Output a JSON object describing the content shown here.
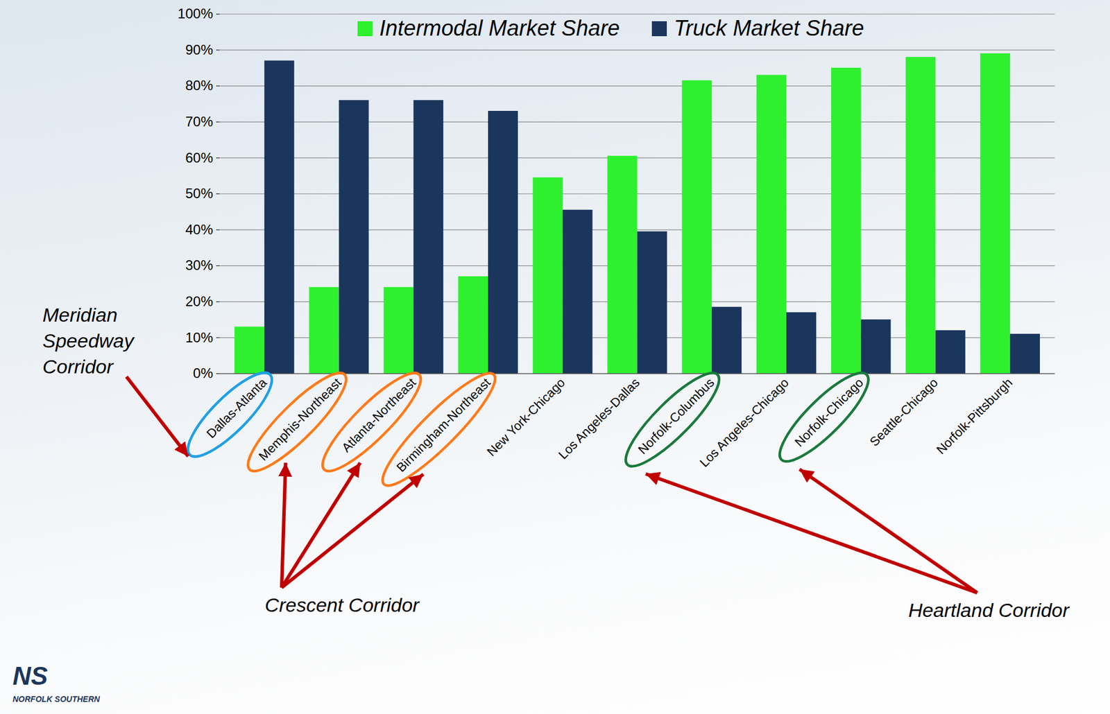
{
  "chart_data": {
    "type": "bar",
    "categories": [
      "Dallas-Atlanta",
      "Memphis-Northeast",
      "Atlanta-Northeast",
      "Birmingham-Northeast",
      "New York-Chicago",
      "Los Angeles-Dallas",
      "Norfolk-Columbus",
      "Los Angeles-Chicago",
      "Norfolk-Chicago",
      "Seattle-Chicago",
      "Norfolk-Pittsburgh"
    ],
    "series": [
      {
        "name": "Intermodal Market Share",
        "color": "#2ef02e",
        "values": [
          13,
          24,
          24,
          27,
          54.5,
          60.5,
          81.5,
          83,
          85,
          88,
          89
        ]
      },
      {
        "name": "Truck Market Share",
        "color": "#1b365d",
        "values": [
          87,
          76,
          76,
          73,
          45.5,
          39.5,
          18.5,
          17,
          15,
          12,
          11
        ]
      }
    ],
    "ylim": [
      0,
      100
    ],
    "yticks": [
      {
        "value": 0,
        "label": "0%"
      },
      {
        "value": 10,
        "label": "10%"
      },
      {
        "value": 20,
        "label": "20%"
      },
      {
        "value": 30,
        "label": "30%"
      },
      {
        "value": 40,
        "label": "40%"
      },
      {
        "value": 50,
        "label": "50%"
      },
      {
        "value": 60,
        "label": "60%"
      },
      {
        "value": 70,
        "label": "70%"
      },
      {
        "value": 80,
        "label": "80%"
      },
      {
        "value": 90,
        "label": "90%"
      },
      {
        "value": 100,
        "label": "100%"
      }
    ],
    "grid": true,
    "legend": "top",
    "annotations": [
      {
        "text": "Meridian Speedway Corridor",
        "categories": [
          "Dallas-Atlanta"
        ],
        "color": "#1ea0e6"
      },
      {
        "text": "Crescent Corridor",
        "categories": [
          "Memphis-Northeast",
          "Atlanta-Northeast",
          "Birmingham-Northeast"
        ],
        "color": "#ff7a1a"
      },
      {
        "text": "Heartland Corridor",
        "categories": [
          "Norfolk-Columbus",
          "Norfolk-Chicago"
        ],
        "color": "#1a7a3c"
      }
    ],
    "logo": {
      "mark": "NS",
      "text": "NORFOLK SOUTHERN"
    }
  }
}
